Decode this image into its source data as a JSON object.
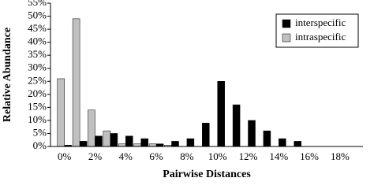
{
  "chart_data": {
    "type": "bar",
    "x_label": "Pairwise Distances",
    "y_label": "Relative Abundance",
    "categories": [
      "0%",
      null,
      "2%",
      null,
      "4%",
      null,
      "6%",
      null,
      "8%",
      null,
      "10%",
      null,
      "12%",
      null,
      "14%",
      null,
      "16%",
      null,
      "18%",
      null
    ],
    "series": [
      {
        "name": "interspecific",
        "color": "#000000",
        "values": [
          0.5,
          2,
          4,
          5,
          4,
          3,
          1,
          2,
          3,
          9,
          25,
          16,
          10,
          6,
          3,
          2,
          0,
          0,
          0,
          0
        ]
      },
      {
        "name": "intraspecific",
        "color": "#c0c0c0",
        "values": [
          26,
          49,
          14,
          6,
          1,
          1,
          1,
          0.5,
          0,
          0,
          0,
          0,
          0,
          0,
          0,
          0,
          0,
          0,
          0,
          0
        ]
      }
    ],
    "ylim": [
      0,
      55
    ],
    "yticks": [
      {
        "value": 0,
        "label": "0%"
      },
      {
        "value": 5,
        "label": "5%"
      },
      {
        "value": 10,
        "label": "10%"
      },
      {
        "value": 15,
        "label": "15%"
      },
      {
        "value": 20,
        "label": "20%"
      },
      {
        "value": 25,
        "label": "25%"
      },
      {
        "value": 30,
        "label": "30%"
      },
      {
        "value": 35,
        "label": "35%"
      },
      {
        "value": 40,
        "label": "40%"
      },
      {
        "value": 45,
        "label": "45%"
      },
      {
        "value": 50,
        "label": "50%"
      },
      {
        "value": 55,
        "label": "55%"
      }
    ],
    "legend": "upper right",
    "grid": false
  }
}
